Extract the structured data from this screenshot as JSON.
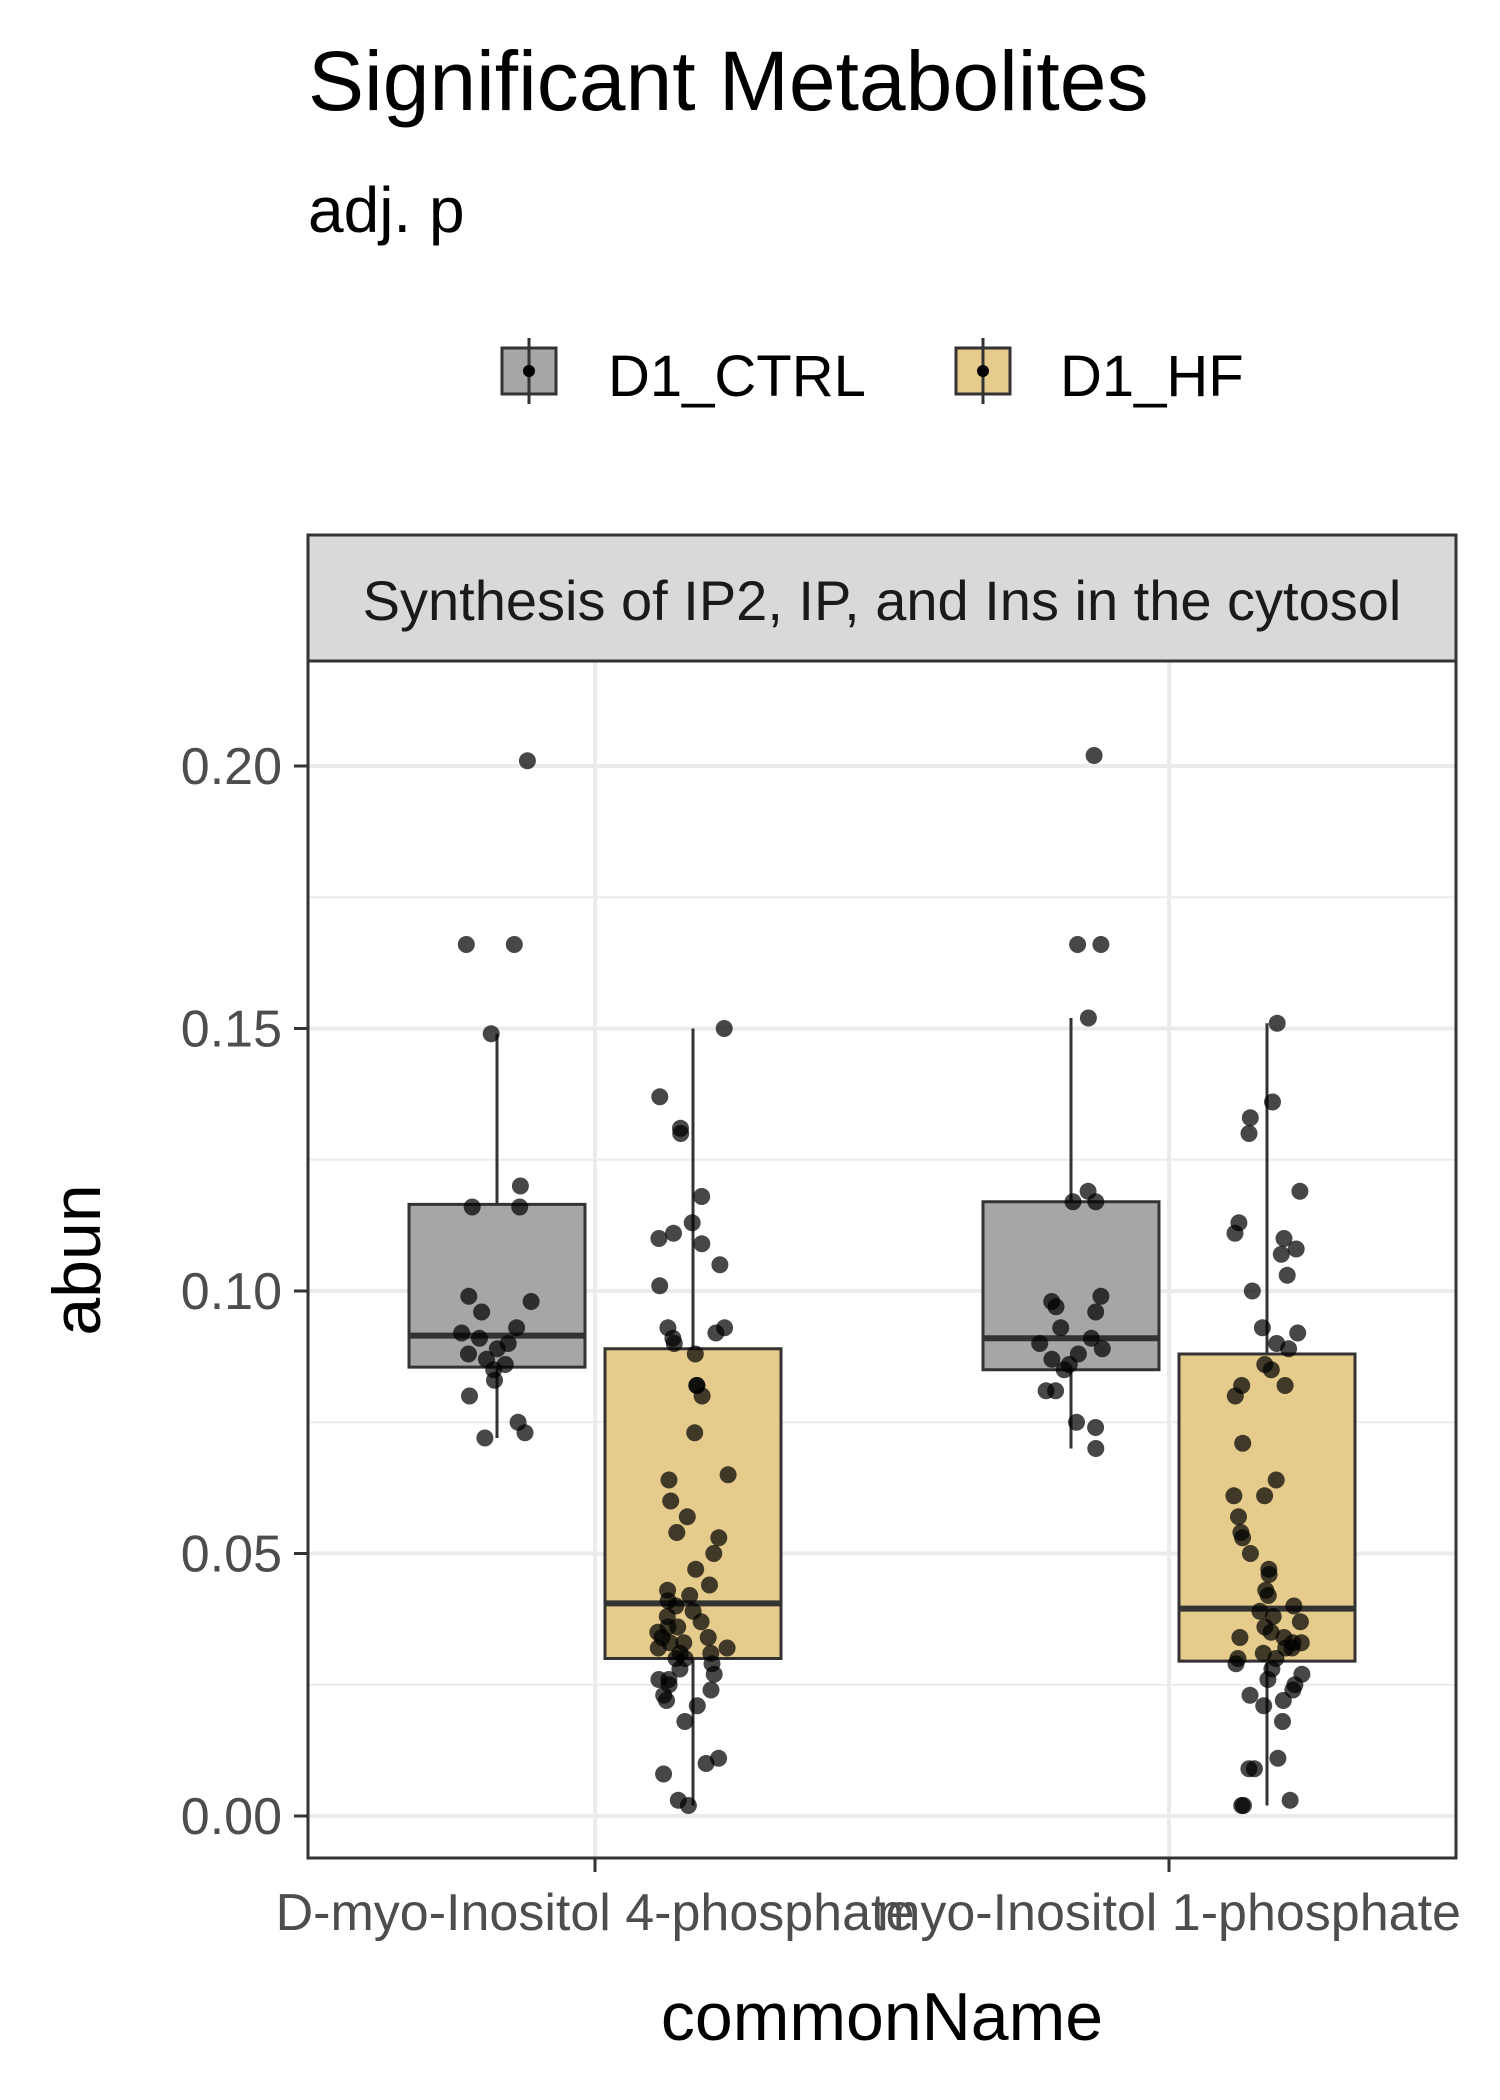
{
  "chart_data": {
    "type": "boxplot",
    "title": "Significant Metabolites",
    "subtitle": "adj. p",
    "facet_label": "Synthesis of IP2, IP, and Ins in the cytosol",
    "xlabel": "commonName",
    "ylabel": "abun",
    "categories": [
      "D-myo-Inositol 4-phosphate",
      "myo-Inositol 1-phosphate"
    ],
    "yticks": [
      "0.00",
      "0.05",
      "0.10",
      "0.15",
      "0.20"
    ],
    "ylim": [
      -0.008,
      0.22
    ],
    "legend_position": "top",
    "grid": true,
    "series": [
      {
        "name": "D1_CTRL",
        "color": "#a6a6a6",
        "boxes": [
          {
            "q1": 0.0855,
            "median": 0.0915,
            "q3": 0.1165,
            "whisker_low": 0.072,
            "whisker_high": 0.149,
            "points": [
              0.201,
              0.166,
              0.166,
              0.149,
              0.12,
              0.116,
              0.116,
              0.099,
              0.098,
              0.096,
              0.093,
              0.092,
              0.091,
              0.09,
              0.089,
              0.088,
              0.087,
              0.086,
              0.085,
              0.083,
              0.08,
              0.075,
              0.073,
              0.072
            ]
          },
          {
            "q1": 0.085,
            "median": 0.091,
            "q3": 0.117,
            "whisker_low": 0.07,
            "whisker_high": 0.152,
            "points": [
              0.202,
              0.166,
              0.166,
              0.152,
              0.119,
              0.117,
              0.117,
              0.099,
              0.098,
              0.097,
              0.096,
              0.093,
              0.091,
              0.09,
              0.089,
              0.088,
              0.087,
              0.086,
              0.085,
              0.081,
              0.081,
              0.075,
              0.074,
              0.07
            ]
          }
        ]
      },
      {
        "name": "D1_HF",
        "color": "#e6cc8c",
        "boxes": [
          {
            "q1": 0.03,
            "median": 0.0405,
            "q3": 0.089,
            "whisker_low": 0.002,
            "whisker_high": 0.15,
            "points": [
              0.15,
              0.137,
              0.131,
              0.13,
              0.118,
              0.113,
              0.111,
              0.11,
              0.109,
              0.105,
              0.101,
              0.093,
              0.093,
              0.092,
              0.091,
              0.09,
              0.088,
              0.082,
              0.082,
              0.08,
              0.073,
              0.065,
              0.064,
              0.06,
              0.057,
              0.054,
              0.053,
              0.05,
              0.047,
              0.044,
              0.043,
              0.042,
              0.041,
              0.04,
              0.039,
              0.038,
              0.037,
              0.036,
              0.036,
              0.035,
              0.034,
              0.034,
              0.033,
              0.033,
              0.032,
              0.032,
              0.031,
              0.031,
              0.03,
              0.03,
              0.029,
              0.028,
              0.027,
              0.026,
              0.026,
              0.025,
              0.024,
              0.023,
              0.022,
              0.021,
              0.018,
              0.011,
              0.01,
              0.008,
              0.003,
              0.002
            ]
          },
          {
            "q1": 0.0295,
            "median": 0.0395,
            "q3": 0.088,
            "whisker_low": 0.002,
            "whisker_high": 0.151,
            "points": [
              0.151,
              0.136,
              0.133,
              0.13,
              0.119,
              0.113,
              0.111,
              0.11,
              0.108,
              0.107,
              0.103,
              0.1,
              0.093,
              0.092,
              0.09,
              0.089,
              0.086,
              0.085,
              0.082,
              0.082,
              0.08,
              0.071,
              0.064,
              0.061,
              0.061,
              0.057,
              0.054,
              0.053,
              0.05,
              0.047,
              0.046,
              0.043,
              0.042,
              0.04,
              0.039,
              0.038,
              0.037,
              0.036,
              0.035,
              0.034,
              0.034,
              0.033,
              0.033,
              0.032,
              0.032,
              0.031,
              0.03,
              0.03,
              0.029,
              0.028,
              0.027,
              0.026,
              0.025,
              0.024,
              0.023,
              0.022,
              0.021,
              0.018,
              0.011,
              0.009,
              0.009,
              0.003,
              0.002,
              0.002
            ]
          }
        ]
      }
    ]
  }
}
